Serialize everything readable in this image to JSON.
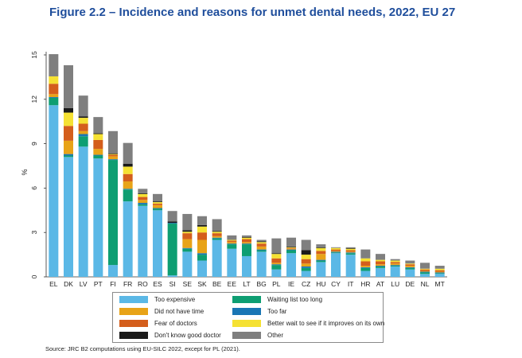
{
  "title": "Figure 2.2 – Incidence and reasons for unmet dental needs, 2022, EU 27",
  "source": "Source: JRC B2 computations using EU-SILC 2022, except for PL (2021).",
  "chart_data": {
    "type": "bar",
    "stacked": true,
    "ylabel": "%",
    "xlabel": "",
    "ylim": [
      0,
      15
    ],
    "yticks": [
      "0",
      "3",
      "6",
      "9",
      "12",
      "15"
    ],
    "legend_position": "bottom",
    "categories": [
      "EL",
      "DK",
      "LV",
      "PT",
      "FI",
      "FR",
      "RO",
      "ES",
      "SI",
      "SE",
      "SK",
      "BE",
      "EE",
      "LT",
      "BG",
      "PL",
      "IE",
      "CZ",
      "HU",
      "CY",
      "IT",
      "HR",
      "AT",
      "LU",
      "DE",
      "NL",
      "MT"
    ],
    "series": [
      {
        "name": "Too expensive",
        "color": "#5bb8e6",
        "values": [
          11.6,
          8.1,
          8.8,
          8.0,
          0.8,
          5.1,
          4.8,
          4.5,
          0.1,
          1.7,
          1.1,
          2.5,
          1.9,
          1.4,
          1.7,
          0.5,
          1.6,
          0.4,
          1.0,
          1.6,
          1.5,
          0.4,
          0.6,
          0.7,
          0.5,
          0.2,
          0.2
        ]
      },
      {
        "name": "Waiting list too long",
        "color": "#0e9e72",
        "values": [
          0.5,
          0.1,
          0.7,
          0.2,
          7.1,
          0.8,
          0.1,
          0.1,
          3.5,
          0.2,
          0.4,
          0.1,
          0.3,
          0.8,
          0.1,
          0.3,
          0.2,
          0.2,
          0.1,
          0.05,
          0.1,
          0.2,
          0.1,
          0.05,
          0.1,
          0.1,
          0.05
        ]
      },
      {
        "name": "Too far",
        "color": "#1a76b4",
        "values": [
          0.05,
          0.1,
          0.15,
          0.05,
          0.05,
          0.05,
          0.1,
          0.05,
          0.05,
          0.05,
          0.1,
          0.05,
          0.05,
          0.05,
          0.05,
          0.05,
          0.05,
          0.1,
          0.05,
          0.05,
          0.05,
          0.05,
          0.05,
          0.05,
          0.05,
          0.05,
          0.05
        ]
      },
      {
        "name": "Did not have time",
        "color": "#e8a317",
        "values": [
          0.2,
          0.9,
          0.2,
          0.4,
          0.2,
          0.5,
          0.2,
          0.2,
          0.0,
          0.6,
          0.9,
          0.1,
          0.1,
          0.1,
          0.2,
          0.1,
          0.05,
          0.2,
          0.4,
          0.05,
          0.05,
          0.1,
          0.1,
          0.1,
          0.1,
          0.05,
          0.05
        ]
      },
      {
        "name": "Fear of doctors",
        "color": "#d45e1c",
        "values": [
          0.7,
          1.0,
          0.5,
          0.6,
          0.1,
          0.5,
          0.2,
          0.1,
          0.0,
          0.4,
          0.5,
          0.2,
          0.1,
          0.2,
          0.2,
          0.3,
          0.05,
          0.3,
          0.2,
          0.1,
          0.1,
          0.3,
          0.2,
          0.1,
          0.1,
          0.1,
          0.1
        ]
      },
      {
        "name": "Better wait to see if it improves on its own",
        "color": "#f5e133",
        "values": [
          0.5,
          0.9,
          0.4,
          0.4,
          0.05,
          0.5,
          0.2,
          0.1,
          0.0,
          0.1,
          0.4,
          0.1,
          0.05,
          0.1,
          0.1,
          0.3,
          0.05,
          0.3,
          0.2,
          0.1,
          0.1,
          0.2,
          0.1,
          0.1,
          0.05,
          0.05,
          0.1
        ]
      },
      {
        "name": "Don't know good doctor",
        "color": "#1a1a1a",
        "values": [
          0.0,
          0.3,
          0.1,
          0.05,
          0.05,
          0.2,
          0.05,
          0.05,
          0.1,
          0.1,
          0.1,
          0.05,
          0.0,
          0.05,
          0.05,
          0.05,
          0.05,
          0.3,
          0.05,
          0.0,
          0.05,
          0.0,
          0.0,
          0.0,
          0.0,
          0.0,
          0.0
        ]
      },
      {
        "name": "Other",
        "color": "#7f7f7f",
        "values": [
          1.5,
          2.9,
          1.4,
          1.1,
          1.5,
          1.4,
          0.3,
          0.5,
          0.7,
          1.1,
          0.6,
          0.8,
          0.3,
          0.1,
          0.1,
          1.0,
          0.6,
          0.7,
          0.2,
          0.05,
          0.05,
          0.6,
          0.4,
          0.1,
          0.2,
          0.4,
          0.2
        ]
      }
    ],
    "legend_order": [
      "Too expensive",
      "Waiting list too long",
      "Did not have time",
      "Too far",
      "Fear of doctors",
      "Better wait to see if it improves on its own",
      "Don't know good doctor",
      "Other"
    ]
  }
}
